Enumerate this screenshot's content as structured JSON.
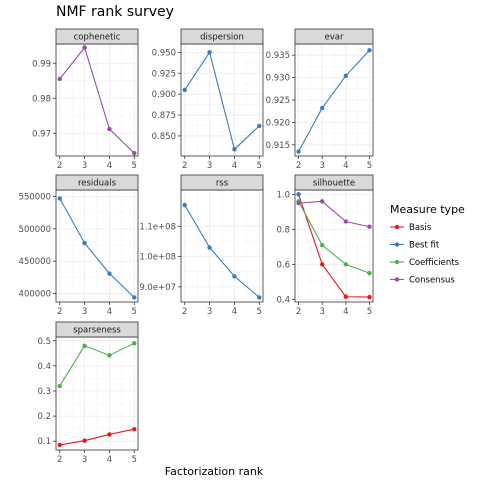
{
  "title": "NMF rank survey",
  "xlabel": "Factorization rank",
  "legend": {
    "title": "Measure type",
    "items": [
      {
        "label": "Basis",
        "color": "#e41a1c"
      },
      {
        "label": "Best fit",
        "color": "#377eb8"
      },
      {
        "label": "Coefficients",
        "color": "#4daf4a"
      },
      {
        "label": "Consensus",
        "color": "#984ea3"
      }
    ]
  },
  "chart_data": [
    {
      "type": "line",
      "panel": "cophenetic",
      "x": [
        2,
        3,
        4,
        5
      ],
      "xticks": [
        "2",
        "3",
        "4",
        "5"
      ],
      "ylim": [
        0.9635,
        0.9955
      ],
      "yticks": [
        0.97,
        0.98,
        0.99
      ],
      "ytick_labels": [
        "0.97",
        "0.98",
        "0.99"
      ],
      "series": [
        {
          "name": "Consensus",
          "values": [
            0.9855,
            0.9945,
            0.9712,
            0.9643
          ]
        }
      ]
    },
    {
      "type": "line",
      "panel": "dispersion",
      "x": [
        2,
        3,
        4,
        5
      ],
      "xticks": [
        "2",
        "3",
        "4",
        "5"
      ],
      "ylim": [
        0.826,
        0.96
      ],
      "yticks": [
        0.85,
        0.875,
        0.9,
        0.925,
        0.95
      ],
      "ytick_labels": [
        "0.850",
        "0.875",
        "0.900",
        "0.925",
        "0.950"
      ],
      "series": [
        {
          "name": "Best fit",
          "values": [
            0.905,
            0.95,
            0.834,
            0.862
          ]
        }
      ]
    },
    {
      "type": "line",
      "panel": "evar",
      "x": [
        2,
        3,
        4,
        5
      ],
      "xticks": [
        "2",
        "3",
        "4",
        "5"
      ],
      "ylim": [
        0.9125,
        0.9375
      ],
      "yticks": [
        0.915,
        0.92,
        0.925,
        0.93,
        0.935
      ],
      "ytick_labels": [
        "0.915",
        "0.920",
        "0.925",
        "0.930",
        "0.935"
      ],
      "series": [
        {
          "name": "Best fit",
          "values": [
            0.9135,
            0.9232,
            0.9304,
            0.9361
          ]
        }
      ]
    },
    {
      "type": "line",
      "panel": "residuals",
      "x": [
        2,
        3,
        4,
        5
      ],
      "xticks": [
        "2",
        "3",
        "4",
        "5"
      ],
      "ylim": [
        387000,
        560000
      ],
      "yticks": [
        400000,
        450000,
        500000,
        550000
      ],
      "ytick_labels": [
        "400000",
        "450000",
        "500000",
        "550000"
      ],
      "series": [
        {
          "name": "Best fit",
          "values": [
            547000,
            478000,
            431000,
            394000
          ]
        }
      ]
    },
    {
      "type": "line",
      "panel": "rss",
      "x": [
        2,
        3,
        4,
        5
      ],
      "xticks": [
        "2",
        "3",
        "4",
        "5"
      ],
      "ylim": [
        85000000,
        122000000
      ],
      "yticks": [
        90000000,
        100000000,
        110000000
      ],
      "ytick_labels": [
        "9.0e+07",
        "1.0e+08",
        "1.1e+08"
      ],
      "series": [
        {
          "name": "Best fit",
          "values": [
            117000000,
            103000000,
            93500000,
            86500000
          ]
        }
      ]
    },
    {
      "type": "line",
      "panel": "silhouette",
      "x": [
        2,
        3,
        4,
        5
      ],
      "xticks": [
        "2",
        "3",
        "4",
        "5"
      ],
      "ylim": [
        0.385,
        1.025
      ],
      "yticks": [
        0.4,
        0.6,
        0.8,
        1.0
      ],
      "ytick_labels": [
        "0.4",
        "0.6",
        "0.8",
        "1.0"
      ],
      "series": [
        {
          "name": "Basis",
          "values": [
            1.0,
            0.6,
            0.415,
            0.413
          ]
        },
        {
          "name": "Best fit",
          "values": [
            1.0,
            null,
            null,
            null
          ]
        },
        {
          "name": "Coefficients",
          "values": [
            0.96,
            0.71,
            0.6,
            0.55
          ]
        },
        {
          "name": "Consensus",
          "values": [
            0.95,
            0.96,
            0.845,
            0.815
          ]
        }
      ]
    },
    {
      "type": "line",
      "panel": "sparseness",
      "x": [
        2,
        3,
        4,
        5
      ],
      "xticks": [
        "2",
        "3",
        "4",
        "5"
      ],
      "ylim": [
        0.065,
        0.515
      ],
      "yticks": [
        0.1,
        0.2,
        0.3,
        0.4,
        0.5
      ],
      "ytick_labels": [
        "0.1",
        "0.2",
        "0.3",
        "0.4",
        "0.5"
      ],
      "series": [
        {
          "name": "Basis",
          "values": [
            0.085,
            0.102,
            0.127,
            0.148
          ]
        },
        {
          "name": "Coefficients",
          "values": [
            0.32,
            0.48,
            0.442,
            0.49
          ]
        }
      ]
    }
  ]
}
